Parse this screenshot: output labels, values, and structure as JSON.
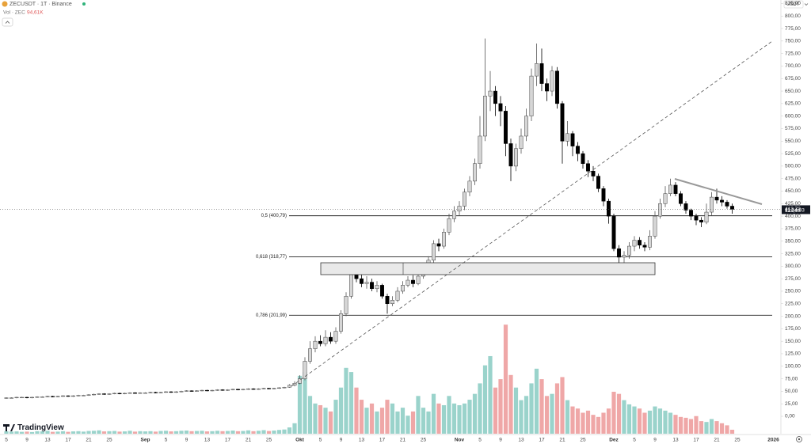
{
  "chart_data": {
    "type": "candlestick",
    "title": "ZECUSDT · 1T · Binance",
    "volume_title": "Vol · ZEC",
    "volume_last_label": "94,61K",
    "currency": "USDT",
    "brand": "TradingView",
    "countdown": "11:34:03",
    "grid": false,
    "up_color": "#d6d6d6",
    "down_color": "#000000",
    "volume_up_color": "#9ad3cb",
    "volume_down_color": "#efa7a7",
    "ylim": [
      0,
      832
    ],
    "volume_ylim": [
      0,
      4000
    ],
    "yticks": [
      {
        "value": 0,
        "label": "0,00"
      },
      {
        "value": 25,
        "label": "25,00"
      },
      {
        "value": 50,
        "label": "50,00"
      },
      {
        "value": 75,
        "label": "75,00"
      },
      {
        "value": 100,
        "label": "100,00"
      },
      {
        "value": 125,
        "label": "125,00"
      },
      {
        "value": 150,
        "label": "150,00"
      },
      {
        "value": 175,
        "label": "175,00"
      },
      {
        "value": 200,
        "label": "200,00"
      },
      {
        "value": 225,
        "label": "225,00"
      },
      {
        "value": 250,
        "label": "250,00"
      },
      {
        "value": 275,
        "label": "275,00"
      },
      {
        "value": 300,
        "label": "300,00"
      },
      {
        "value": 325,
        "label": "325,00"
      },
      {
        "value": 350,
        "label": "350,00"
      },
      {
        "value": 375,
        "label": "375,00"
      },
      {
        "value": 400,
        "label": "400,00"
      },
      {
        "value": 425,
        "label": "425,00"
      },
      {
        "value": 450,
        "label": "450,00"
      },
      {
        "value": 475,
        "label": "475,00"
      },
      {
        "value": 500,
        "label": "500,00"
      },
      {
        "value": 525,
        "label": "525,00"
      },
      {
        "value": 550,
        "label": "550,00"
      },
      {
        "value": 575,
        "label": "575,00"
      },
      {
        "value": 600,
        "label": "600,00"
      },
      {
        "value": 625,
        "label": "625,00"
      },
      {
        "value": 650,
        "label": "650,00"
      },
      {
        "value": 675,
        "label": "675,00"
      },
      {
        "value": 700,
        "label": "700,00"
      },
      {
        "value": 725,
        "label": "725,00"
      },
      {
        "value": 750,
        "label": "750,00"
      },
      {
        "value": 775,
        "label": "775,00"
      },
      {
        "value": 800,
        "label": "800,00"
      },
      {
        "value": 825,
        "label": "825,00"
      }
    ],
    "last_price": {
      "value": 413.72,
      "label": "413,72"
    },
    "second_price": {
      "value": 412.08,
      "label": "412,08"
    },
    "fib_levels": [
      {
        "value": 400.79,
        "label": "0,5 (400,79)"
      },
      {
        "value": 318.77,
        "label": "0,618 (318,77)"
      },
      {
        "value": 201.99,
        "label": "0,786 (201,99)"
      }
    ],
    "categories": [
      "5",
      null,
      null,
      null,
      "9",
      null,
      null,
      null,
      "13",
      null,
      null,
      null,
      "17",
      null,
      null,
      null,
      "21",
      null,
      null,
      null,
      "25",
      null,
      null,
      null,
      null,
      null,
      null,
      "Sep",
      null,
      null,
      null,
      "5",
      null,
      null,
      null,
      "9",
      null,
      null,
      null,
      "13",
      null,
      null,
      null,
      "17",
      null,
      null,
      null,
      "21",
      null,
      null,
      null,
      "25",
      null,
      null,
      null,
      null,
      null,
      "Okt",
      null,
      null,
      null,
      "5",
      null,
      null,
      null,
      "9",
      null,
      null,
      null,
      "13",
      null,
      null,
      null,
      "17",
      null,
      null,
      null,
      "21",
      null,
      null,
      null,
      "25",
      null,
      null,
      null,
      null,
      null,
      null,
      "Nov",
      null,
      null,
      null,
      "5",
      null,
      null,
      null,
      "9",
      null,
      null,
      null,
      "13",
      null,
      null,
      null,
      "17",
      null,
      null,
      null,
      "21",
      null,
      null,
      null,
      "25",
      null,
      null,
      null,
      null,
      null,
      "Dez",
      null,
      null,
      null,
      "5",
      null,
      null,
      null,
      "9",
      null,
      null,
      null,
      "13",
      null,
      null,
      null,
      "17",
      null,
      null,
      null,
      "21",
      null,
      null,
      null,
      "25",
      null,
      null,
      null,
      null,
      null,
      null,
      "2026"
    ],
    "open": [
      36,
      37,
      37,
      38,
      38,
      37,
      38,
      39,
      39,
      40,
      39,
      40,
      41,
      40,
      41,
      42,
      42,
      43,
      44,
      45,
      44,
      45,
      46,
      45,
      46,
      47,
      46,
      47,
      47,
      48,
      47,
      48,
      49,
      48,
      49,
      50,
      51,
      50,
      51,
      52,
      51,
      52,
      53,
      52,
      53,
      54,
      53,
      54,
      55,
      54,
      55,
      56,
      55,
      56,
      57,
      58,
      62,
      66,
      75,
      110,
      135,
      150,
      145,
      158,
      150,
      170,
      205,
      240,
      285,
      275,
      265,
      268,
      255,
      262,
      240,
      225,
      232,
      250,
      262,
      272,
      265,
      280,
      298,
      312,
      345,
      340,
      368,
      395,
      410,
      420,
      448,
      470,
      505,
      560,
      640,
      650,
      625,
      610,
      545,
      500,
      535,
      560,
      600,
      680,
      705,
      665,
      650,
      690,
      625,
      550,
      565,
      540,
      525,
      505,
      490,
      480,
      455,
      430,
      400,
      335,
      318,
      322,
      340,
      352,
      342,
      338,
      360,
      400,
      425,
      445,
      462,
      445,
      425,
      412,
      400,
      392,
      388,
      408,
      438,
      432,
      428,
      420,
      null,
      null,
      null,
      null,
      null,
      null,
      null,
      null
    ],
    "high": [
      38,
      38,
      39,
      39,
      39,
      39,
      40,
      40,
      41,
      41,
      41,
      42,
      42,
      42,
      43,
      43,
      44,
      45,
      46,
      46,
      46,
      47,
      47,
      47,
      48,
      48,
      48,
      48,
      49,
      49,
      49,
      50,
      50,
      50,
      51,
      52,
      52,
      52,
      53,
      53,
      53,
      54,
      54,
      54,
      55,
      55,
      55,
      56,
      56,
      56,
      57,
      57,
      57,
      58,
      59,
      64,
      70,
      82,
      118,
      150,
      160,
      162,
      172,
      168,
      178,
      212,
      248,
      300,
      295,
      285,
      280,
      275,
      270,
      265,
      245,
      240,
      258,
      270,
      280,
      282,
      288,
      305,
      320,
      352,
      355,
      375,
      405,
      420,
      430,
      455,
      480,
      515,
      600,
      755,
      690,
      660,
      640,
      620,
      555,
      545,
      575,
      615,
      695,
      745,
      735,
      675,
      700,
      698,
      630,
      590,
      570,
      548,
      530,
      512,
      500,
      485,
      460,
      435,
      405,
      342,
      330,
      348,
      360,
      358,
      348,
      372,
      410,
      435,
      460,
      475,
      468,
      450,
      430,
      415,
      405,
      398,
      425,
      448,
      455,
      440,
      432,
      425,
      null,
      null,
      null,
      null,
      null,
      null,
      null,
      null
    ],
    "low": [
      35,
      36,
      36,
      37,
      36,
      36,
      37,
      38,
      38,
      38,
      38,
      39,
      39,
      39,
      40,
      41,
      41,
      42,
      43,
      43,
      43,
      44,
      44,
      44,
      45,
      45,
      45,
      46,
      46,
      46,
      46,
      47,
      47,
      47,
      48,
      49,
      49,
      49,
      50,
      50,
      50,
      51,
      51,
      51,
      52,
      52,
      52,
      53,
      53,
      53,
      54,
      54,
      54,
      55,
      56,
      57,
      60,
      64,
      72,
      105,
      128,
      140,
      140,
      145,
      145,
      165,
      200,
      235,
      268,
      258,
      255,
      250,
      248,
      235,
      205,
      220,
      228,
      245,
      258,
      258,
      262,
      275,
      292,
      305,
      330,
      335,
      362,
      388,
      402,
      412,
      440,
      462,
      495,
      550,
      610,
      600,
      580,
      520,
      470,
      490,
      525,
      550,
      590,
      660,
      650,
      630,
      640,
      615,
      505,
      540,
      520,
      510,
      495,
      478,
      470,
      448,
      420,
      385,
      330,
      300,
      305,
      315,
      330,
      335,
      330,
      332,
      355,
      395,
      418,
      440,
      440,
      420,
      405,
      392,
      382,
      378,
      384,
      402,
      425,
      420,
      415,
      405,
      null,
      null,
      null,
      null,
      null,
      null,
      null,
      null
    ],
    "close": [
      37,
      37,
      38,
      38,
      37,
      38,
      39,
      39,
      40,
      39,
      40,
      41,
      40,
      41,
      42,
      42,
      43,
      44,
      45,
      44,
      45,
      46,
      45,
      46,
      47,
      46,
      47,
      47,
      48,
      47,
      48,
      49,
      48,
      49,
      50,
      51,
      50,
      51,
      52,
      51,
      52,
      53,
      52,
      53,
      54,
      53,
      54,
      55,
      54,
      55,
      56,
      55,
      56,
      57,
      58,
      62,
      66,
      75,
      110,
      135,
      150,
      145,
      158,
      150,
      170,
      205,
      240,
      285,
      275,
      265,
      268,
      255,
      262,
      240,
      225,
      232,
      250,
      262,
      272,
      265,
      280,
      298,
      312,
      345,
      340,
      368,
      395,
      410,
      420,
      448,
      470,
      505,
      560,
      640,
      650,
      625,
      610,
      545,
      500,
      535,
      560,
      600,
      680,
      705,
      665,
      650,
      690,
      625,
      550,
      565,
      540,
      525,
      505,
      490,
      480,
      455,
      430,
      400,
      335,
      318,
      322,
      340,
      352,
      342,
      338,
      360,
      400,
      425,
      445,
      462,
      445,
      425,
      412,
      400,
      392,
      388,
      408,
      438,
      432,
      428,
      420,
      413.72,
      null,
      null,
      null,
      null,
      null,
      null,
      null,
      null
    ],
    "volume": [
      60,
      50,
      55,
      45,
      50,
      40,
      60,
      55,
      70,
      45,
      50,
      60,
      45,
      55,
      60,
      50,
      65,
      70,
      80,
      55,
      60,
      65,
      50,
      55,
      70,
      50,
      60,
      55,
      60,
      50,
      65,
      70,
      55,
      60,
      70,
      75,
      60,
      65,
      70,
      55,
      60,
      70,
      60,
      65,
      75,
      60,
      65,
      80,
      60,
      70,
      85,
      65,
      75,
      90,
      100,
      150,
      250,
      1380,
      1470,
      900,
      720,
      680,
      620,
      530,
      810,
      1100,
      1570,
      1470,
      1100,
      810,
      620,
      720,
      530,
      620,
      810,
      720,
      530,
      620,
      430,
      530,
      900,
      620,
      530,
      950,
      720,
      680,
      900,
      720,
      680,
      720,
      810,
      950,
      1200,
      1630,
      1850,
      1100,
      1300,
      2600,
      1400,
      1100,
      800,
      900,
      1200,
      1550,
      1300,
      900,
      950,
      1200,
      1350,
      800,
      650,
      600,
      500,
      550,
      450,
      400,
      500,
      600,
      1000,
      950,
      800,
      700,
      650,
      600,
      500,
      550,
      650,
      600,
      550,
      500,
      450,
      400,
      380,
      350,
      420,
      300,
      280,
      350,
      300,
      250,
      200,
      94.61,
      null,
      null,
      null,
      null,
      null,
      null,
      null,
      null
    ]
  }
}
